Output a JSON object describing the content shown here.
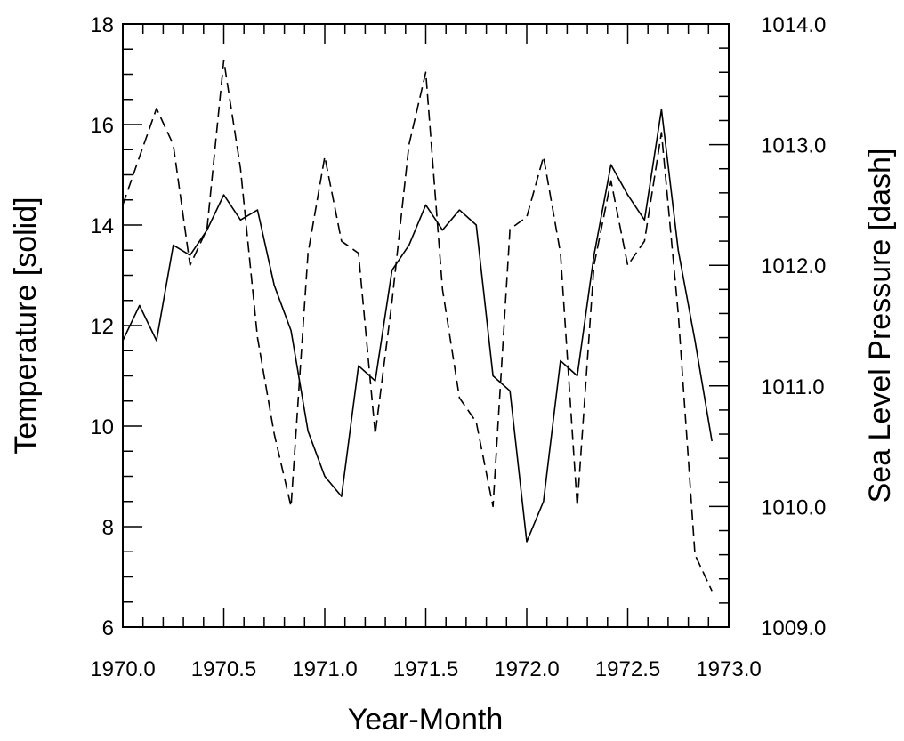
{
  "chart_data": {
    "type": "line",
    "xlabel": "Year-Month",
    "ylabel_left": "Temperature  [solid]",
    "ylabel_right": "Sea Level Pressure  [dash]",
    "xlim": [
      1970.0,
      1973.0
    ],
    "ylim_left": [
      6,
      18
    ],
    "ylim_right": [
      1009.0,
      1014.0
    ],
    "x_ticks": [
      "1970.0",
      "1970.5",
      "1971.0",
      "1971.5",
      "1972.0",
      "1972.5",
      "1973.0"
    ],
    "y_left_ticks": [
      "6",
      "8",
      "10",
      "12",
      "14",
      "16",
      "18"
    ],
    "y_right_ticks": [
      "1009.0",
      "1010.0",
      "1011.0",
      "1012.0",
      "1013.0",
      "1014.0"
    ],
    "x": [
      1970.0,
      1970.083,
      1970.167,
      1970.25,
      1970.333,
      1970.417,
      1970.5,
      1970.583,
      1970.667,
      1970.75,
      1970.833,
      1970.917,
      1971.0,
      1971.083,
      1971.167,
      1971.25,
      1971.333,
      1971.417,
      1971.5,
      1971.583,
      1971.667,
      1971.75,
      1971.833,
      1971.917,
      1972.0,
      1972.083,
      1972.167,
      1972.25,
      1972.333,
      1972.417,
      1972.5,
      1972.583,
      1972.667,
      1972.75,
      1972.833,
      1972.917
    ],
    "series": [
      {
        "axis": "left",
        "style": "solid",
        "values": [
          11.7,
          12.4,
          11.7,
          13.6,
          13.4,
          13.9,
          14.6,
          14.1,
          14.3,
          12.8,
          11.9,
          9.9,
          9.0,
          8.6,
          11.2,
          10.9,
          13.1,
          13.6,
          14.4,
          13.9,
          14.3,
          14.0,
          11.0,
          10.7,
          7.7,
          8.5,
          11.3,
          11.0,
          13.4,
          15.2,
          14.6,
          14.1,
          16.3,
          13.5,
          11.7,
          9.7
        ]
      },
      {
        "axis": "right",
        "style": "dashed",
        "values": [
          1012.5,
          1012.9,
          1013.3,
          1013.0,
          1012.0,
          1012.3,
          1013.7,
          1012.8,
          1011.4,
          1010.6,
          1010.0,
          1012.1,
          1012.9,
          1012.2,
          1012.1,
          1010.6,
          1011.7,
          1013.0,
          1013.6,
          1011.8,
          1010.9,
          1010.7,
          1010.0,
          1012.3,
          1012.4,
          1012.9,
          1012.1,
          1010.0,
          1012.0,
          1012.7,
          1012.0,
          1012.2,
          1013.1,
          1011.6,
          1009.6,
          1009.3
        ]
      }
    ],
    "grid": false,
    "legend": "none"
  }
}
